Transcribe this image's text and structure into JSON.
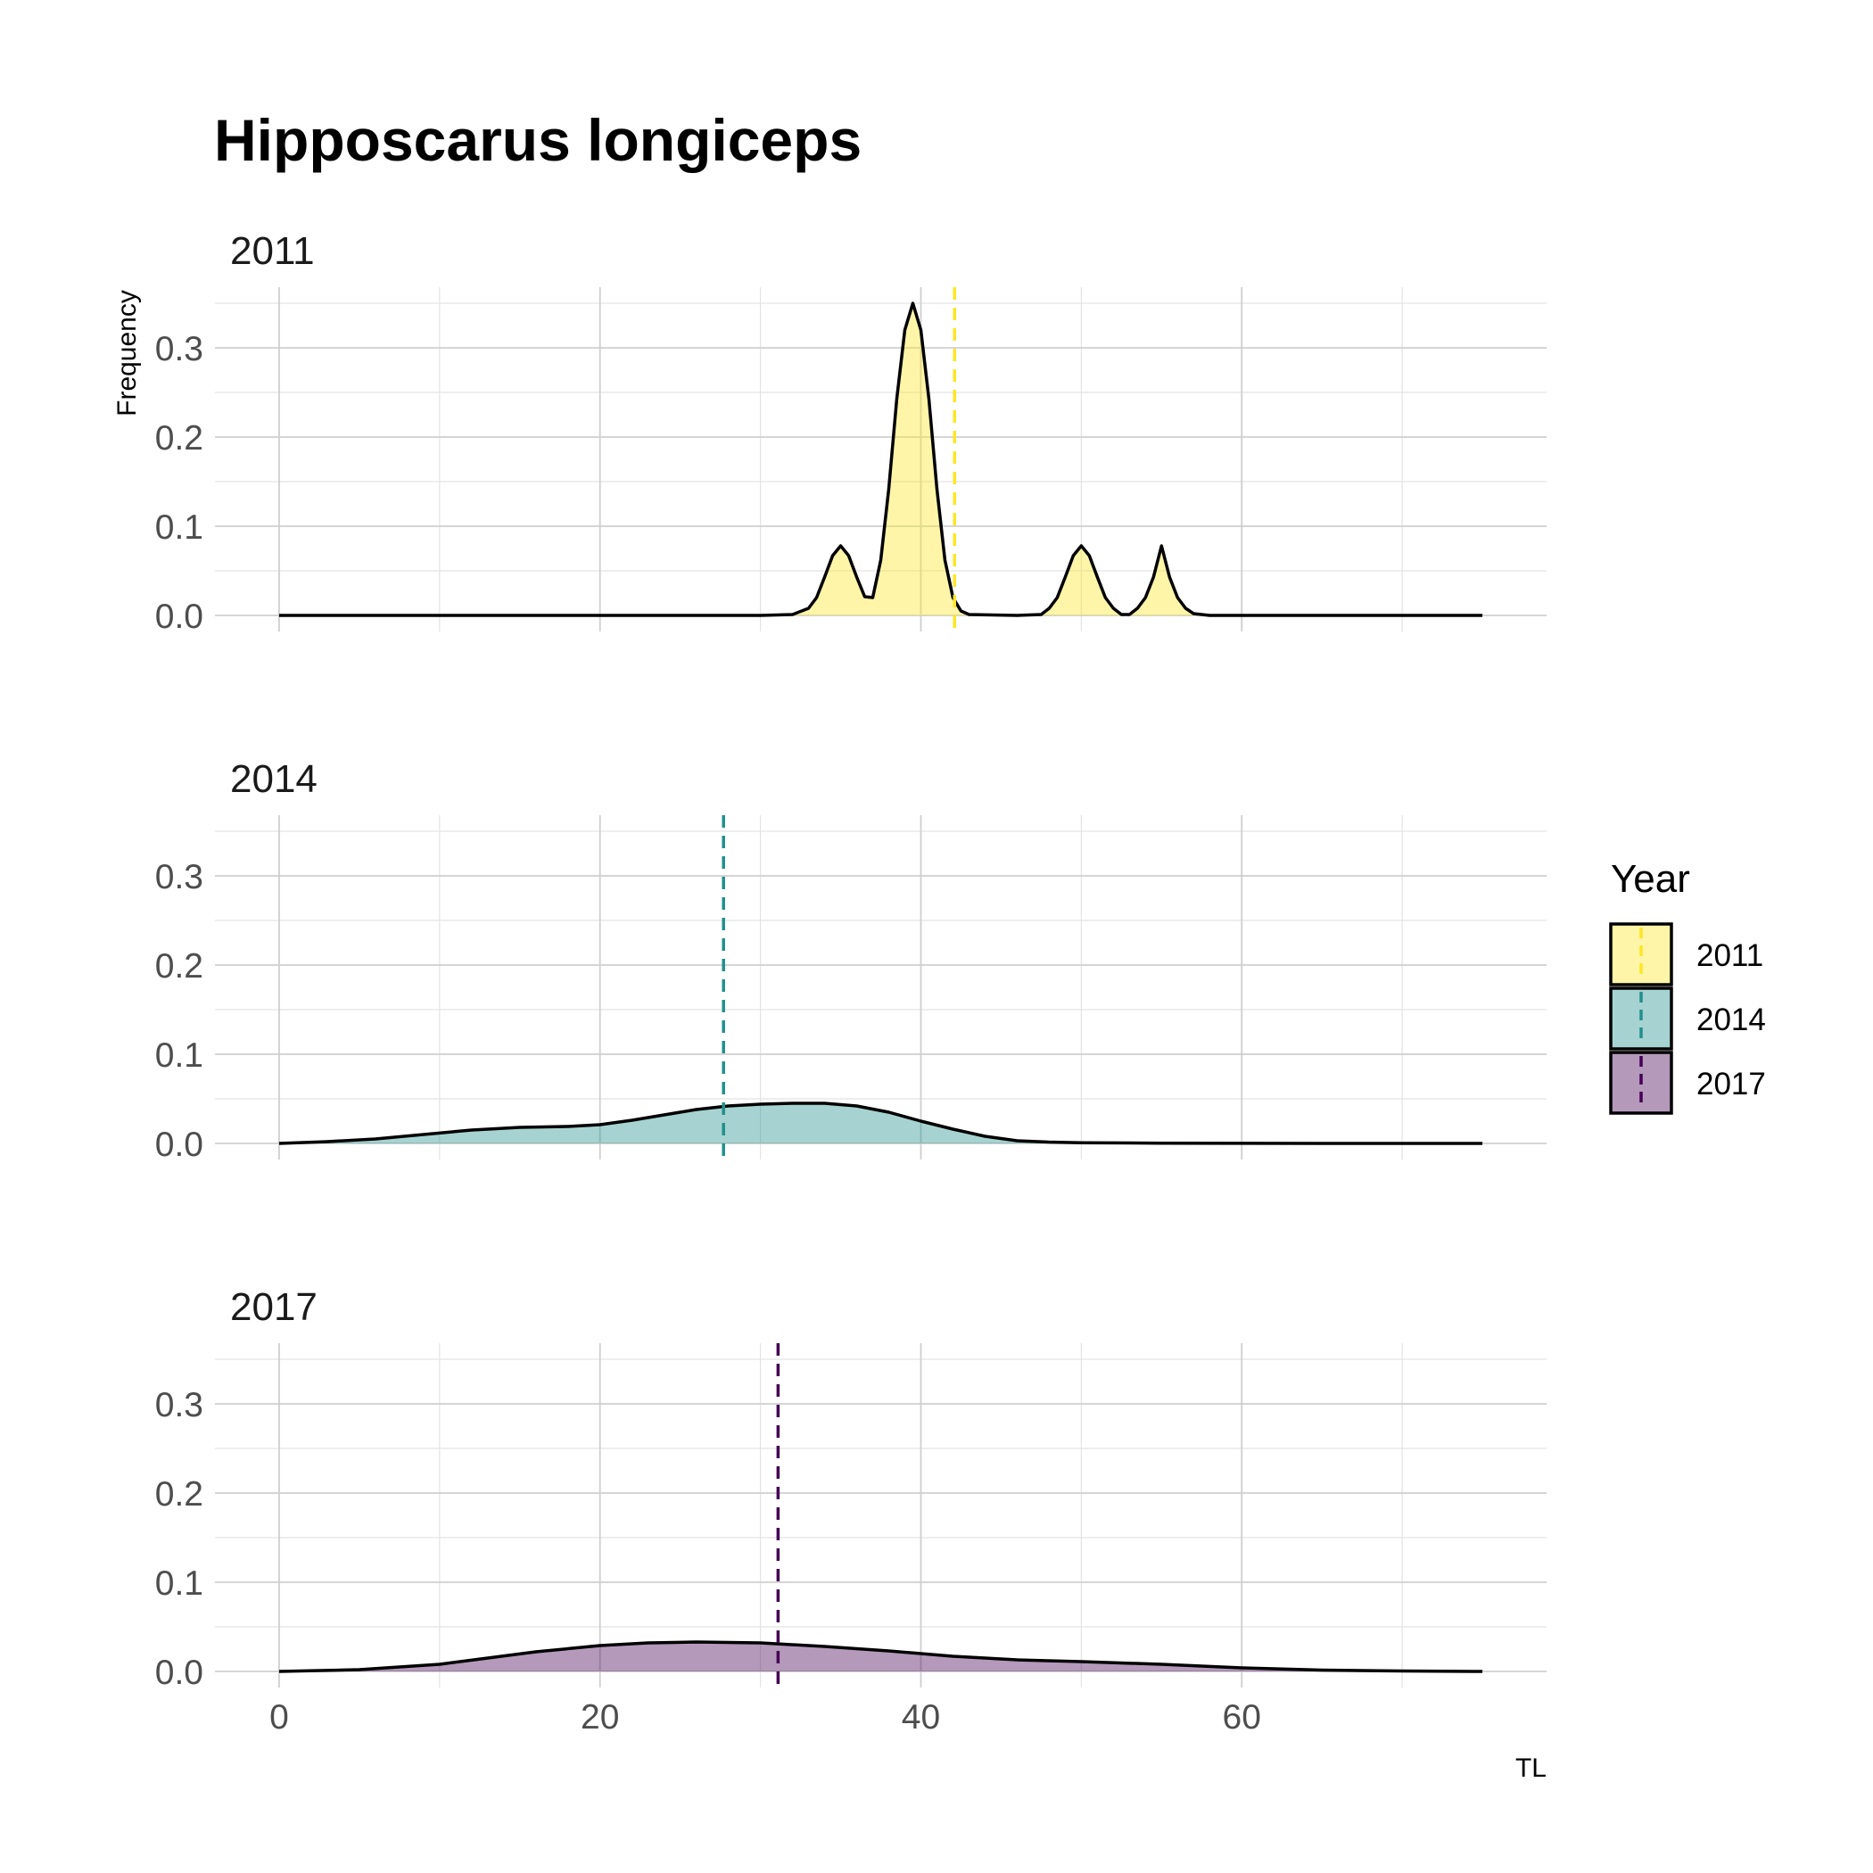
{
  "chart_data": {
    "type": "area",
    "title": "Hipposcarus longiceps",
    "xlabel": "TL",
    "ylabel": "Frequency",
    "xlim": [
      -4,
      79
    ],
    "ylim": [
      -0.018,
      0.368
    ],
    "x_ticks": [
      0,
      20,
      40,
      60
    ],
    "x_tick_labels": [
      "0",
      "20",
      "40",
      "60"
    ],
    "y_ticks": [
      0.0,
      0.1,
      0.2,
      0.3
    ],
    "y_tick_labels": [
      "0.0",
      "0.1",
      "0.2",
      "0.3"
    ],
    "grid": true,
    "legend": {
      "title": "Year",
      "placement": "right",
      "items": [
        {
          "label": "2011",
          "fill": "#FDE725",
          "line": "#FDE725"
        },
        {
          "label": "2014",
          "fill": "#21908C",
          "line": "#21908C"
        },
        {
          "label": "2017",
          "fill": "#440154",
          "line": "#440154"
        }
      ]
    },
    "panels": [
      {
        "name": "2011",
        "fill": "#FDE725",
        "line_color": "#FDE725",
        "mean_line_x": 42.1,
        "x": [
          0,
          30,
          32,
          33,
          33.5,
          34,
          34.5,
          35,
          35.5,
          36,
          36.5,
          37,
          37.5,
          38,
          38.5,
          39,
          39.5,
          40,
          40.5,
          41,
          41.5,
          42,
          42.5,
          43,
          46,
          47.5,
          48,
          48.5,
          49,
          49.5,
          50,
          50.5,
          51,
          51.5,
          52,
          52.5,
          53,
          53.5,
          54,
          54.5,
          55,
          55.5,
          56,
          56.5,
          57,
          57.5,
          58,
          75
        ],
        "y": [
          0,
          0,
          0.001,
          0.008,
          0.02,
          0.043,
          0.067,
          0.078,
          0.067,
          0.043,
          0.021,
          0.02,
          0.062,
          0.142,
          0.243,
          0.32,
          0.35,
          0.32,
          0.243,
          0.142,
          0.062,
          0.02,
          0.005,
          0.001,
          0,
          0.001,
          0.008,
          0.02,
          0.043,
          0.067,
          0.078,
          0.067,
          0.043,
          0.02,
          0.008,
          0.001,
          0.001,
          0.008,
          0.02,
          0.043,
          0.078,
          0.043,
          0.02,
          0.008,
          0.002,
          0.001,
          0,
          0
        ]
      },
      {
        "name": "2014",
        "fill": "#21908C",
        "line_color": "#21908C",
        "mean_line_x": 27.7,
        "x": [
          0,
          3,
          6,
          9,
          12,
          15,
          18,
          20,
          22,
          24,
          26,
          28,
          30,
          32,
          34,
          36,
          38,
          40,
          42,
          44,
          46,
          48,
          50,
          55,
          60,
          65,
          70,
          75
        ],
        "y": [
          0,
          0.002,
          0.005,
          0.01,
          0.015,
          0.018,
          0.019,
          0.021,
          0.026,
          0.032,
          0.038,
          0.042,
          0.044,
          0.045,
          0.045,
          0.042,
          0.035,
          0.025,
          0.016,
          0.008,
          0.003,
          0.0015,
          0.0008,
          0.0003,
          0.0001,
          0,
          0,
          0
        ]
      },
      {
        "name": "2017",
        "fill": "#440154",
        "line_color": "#440154",
        "mean_line_x": 31.1,
        "x": [
          0,
          5,
          10,
          13,
          16,
          20,
          23,
          26,
          30,
          34,
          38,
          42,
          46,
          50,
          55,
          60,
          65,
          70,
          75
        ],
        "y": [
          0,
          0.002,
          0.008,
          0.015,
          0.022,
          0.029,
          0.032,
          0.033,
          0.032,
          0.028,
          0.023,
          0.017,
          0.013,
          0.011,
          0.008,
          0.004,
          0.0015,
          0.0005,
          0
        ]
      }
    ]
  }
}
